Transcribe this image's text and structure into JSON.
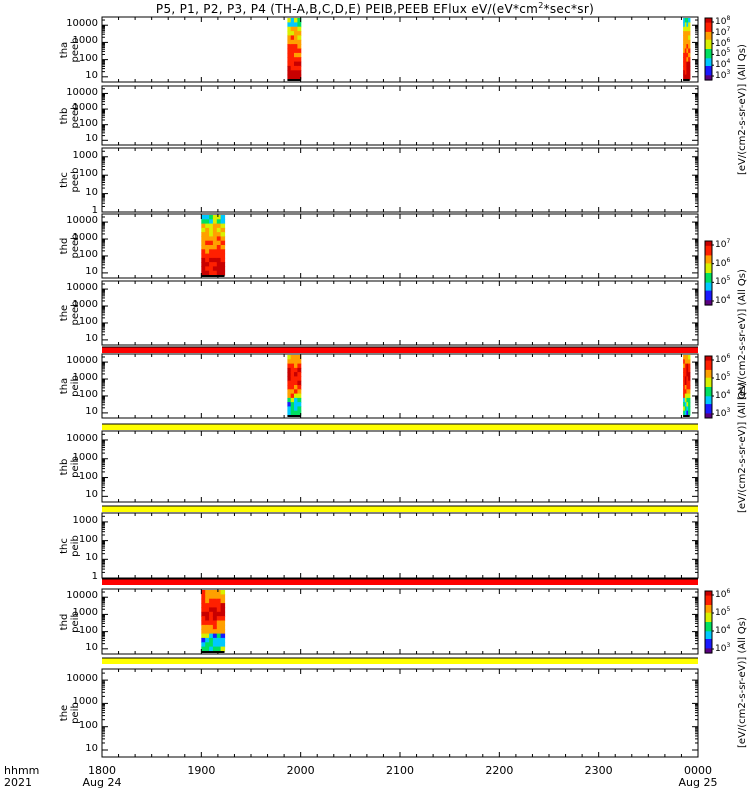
{
  "title": {
    "text": "P5, P1, P2, P3, P4 (TH-A,B,C,D,E) PEIB,PEEB EFlux eV/(eV*cm",
    "sup": "2",
    "text_end": "*sec*sr)"
  },
  "x_axis": {
    "row_labels": [
      "hhmm",
      "2021"
    ],
    "ticks": [
      {
        "value": "1800",
        "sub": "Aug 24"
      },
      {
        "value": "1900",
        "sub": ""
      },
      {
        "value": "2000",
        "sub": ""
      },
      {
        "value": "2100",
        "sub": ""
      },
      {
        "value": "2200",
        "sub": ""
      },
      {
        "value": "2300",
        "sub": ""
      },
      {
        "value": "0000",
        "sub": "Aug 25"
      }
    ]
  },
  "colorbars": [
    {
      "label": "[eV/(cm2-s-sr-eV)] (All Qs)",
      "ticks": [
        {
          "base": "10",
          "exp": "8"
        },
        {
          "base": "10",
          "exp": "7"
        },
        {
          "base": "10",
          "exp": "6"
        },
        {
          "base": "10",
          "exp": "5"
        },
        {
          "base": "10",
          "exp": "4"
        },
        {
          "base": "10",
          "exp": "3"
        }
      ]
    },
    {
      "label": "[eV/(cm2-s-sr-eV)] (All Qs)",
      "ticks": [
        {
          "base": "10",
          "exp": "7"
        },
        {
          "base": "10",
          "exp": "6"
        },
        {
          "base": "10",
          "exp": "5"
        },
        {
          "base": "10",
          "exp": "4"
        }
      ]
    },
    {
      "label": "[eV/(cm2-s-sr-eV)] (All Qs)",
      "ticks": [
        {
          "base": "10",
          "exp": "6"
        },
        {
          "base": "10",
          "exp": "5"
        },
        {
          "base": "10",
          "exp": "4"
        },
        {
          "base": "10",
          "exp": "3"
        }
      ]
    },
    {
      "label": "[eV/(cm2-s-sr-eV)] (All Qs)",
      "ticks": [
        {
          "base": "10",
          "exp": "6"
        },
        {
          "base": "10",
          "exp": "5"
        },
        {
          "base": "10",
          "exp": "4"
        },
        {
          "base": "10",
          "exp": "3"
        }
      ]
    }
  ],
  "chart_data": {
    "type": "heatmap",
    "title": "P5, P1, P2, P3, P4 (TH-A,B,C,D,E) PEIB,PEEB EFlux eV/(eV*cm2*sec*sr)",
    "x_unit": "hhmm",
    "x_range": [
      "2021-08-24 18:00",
      "2021-08-25 00:00"
    ],
    "panels": [
      {
        "label": [
          "tha",
          "peeb"
        ],
        "yticks": [
          "10000",
          "1000",
          "100",
          "10"
        ],
        "ylog": true,
        "ylim": [
          5,
          30000
        ],
        "data_intervals": [
          [
            "19:52",
            "20:00"
          ],
          [
            "23:51",
            "23:55"
          ]
        ]
      },
      {
        "label": [
          "thb",
          "peeb"
        ],
        "yticks": [
          "10000",
          "1000",
          "100",
          "10"
        ],
        "ylog": true,
        "ylim": [
          5,
          30000
        ],
        "data_intervals": []
      },
      {
        "label": [
          "thc",
          "peeb"
        ],
        "yticks": [
          "1000",
          "100",
          "10",
          "1"
        ],
        "ylog": true,
        "ylim": [
          1,
          3000
        ],
        "data_intervals": []
      },
      {
        "label": [
          "thd",
          "peeb"
        ],
        "yticks": [
          "10000",
          "1000",
          "100",
          "10"
        ],
        "ylog": true,
        "ylim": [
          5,
          30000
        ],
        "data_intervals": [
          [
            "19:00",
            "19:14"
          ]
        ]
      },
      {
        "label": [
          "the",
          "peeb"
        ],
        "yticks": [
          "10000",
          "1000",
          "100",
          "10"
        ],
        "ylog": true,
        "ylim": [
          5,
          30000
        ],
        "data_intervals": []
      },
      {
        "label": [
          "tha",
          "peib"
        ],
        "yticks": [
          "10000",
          "1000",
          "100",
          "10"
        ],
        "ylog": true,
        "ylim": [
          5,
          30000
        ],
        "data_intervals": [
          [
            "19:52",
            "20:00"
          ],
          [
            "23:51",
            "23:55"
          ]
        ]
      },
      {
        "label": [
          "thb",
          "peib"
        ],
        "yticks": [
          "10000",
          "1000",
          "100",
          "10"
        ],
        "ylog": true,
        "ylim": [
          5,
          30000
        ],
        "data_intervals": []
      },
      {
        "label": [
          "thc",
          "peib"
        ],
        "yticks": [
          "1000",
          "100",
          "10",
          "1"
        ],
        "ylog": true,
        "ylim": [
          1,
          3000
        ],
        "data_intervals": []
      },
      {
        "label": [
          "thd",
          "peib"
        ],
        "yticks": [
          "10000",
          "1000",
          "100",
          "10"
        ],
        "ylog": true,
        "ylim": [
          5,
          30000
        ],
        "data_intervals": [
          [
            "19:00",
            "19:14"
          ]
        ]
      },
      {
        "label": [
          "the",
          "peib"
        ],
        "yticks": [
          "10000",
          "1000",
          "100",
          "10"
        ],
        "ylog": true,
        "ylim": [
          5,
          30000
        ],
        "data_intervals": []
      }
    ],
    "separator_bars": [
      {
        "after_panel": "the peeb",
        "color": "#ff0000"
      },
      {
        "after_panel": "tha peib",
        "color": "#ffff00"
      },
      {
        "after_panel": "thb peib",
        "color": "#ffff00"
      },
      {
        "after_panel": "thc peib",
        "color": "#ff0000"
      },
      {
        "after_panel": "thd peib",
        "color": "#ffff00"
      }
    ],
    "colormap": [
      "#5a0080",
      "#1a1aff",
      "#00c8ff",
      "#00e060",
      "#d8f000",
      "#ffa000",
      "#ff2000",
      "#c80000"
    ]
  }
}
